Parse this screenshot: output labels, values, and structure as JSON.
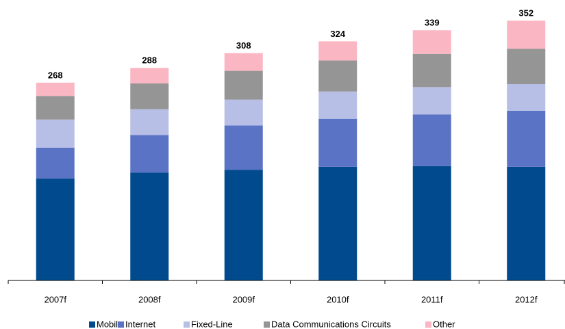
{
  "chart_data": {
    "type": "stacked_bar",
    "categories": [
      "2007f",
      "2008f",
      "2009f",
      "2010f",
      "2011f",
      "2012f"
    ],
    "series": [
      {
        "name": "Mobile",
        "color": "#004a8d",
        "values": [
          138,
          146,
          150,
          154,
          155,
          154
        ]
      },
      {
        "name": "Internet",
        "color": "#5b73c4",
        "values": [
          42,
          51,
          60,
          65,
          70,
          76
        ]
      },
      {
        "name": "Fixed-Line",
        "color": "#b7bfe6",
        "values": [
          38,
          35,
          35,
          37,
          37,
          36
        ]
      },
      {
        "name": "Data Communications Circuits",
        "color": "#959595",
        "values": [
          32,
          35,
          39,
          42,
          45,
          48
        ]
      },
      {
        "name": "Other",
        "color": "#fbb6c3",
        "values": [
          18,
          21,
          24,
          26,
          32,
          38
        ]
      }
    ],
    "totals": [
      268,
      288,
      308,
      324,
      339,
      352
    ],
    "ylim": [
      0,
      380
    ]
  }
}
